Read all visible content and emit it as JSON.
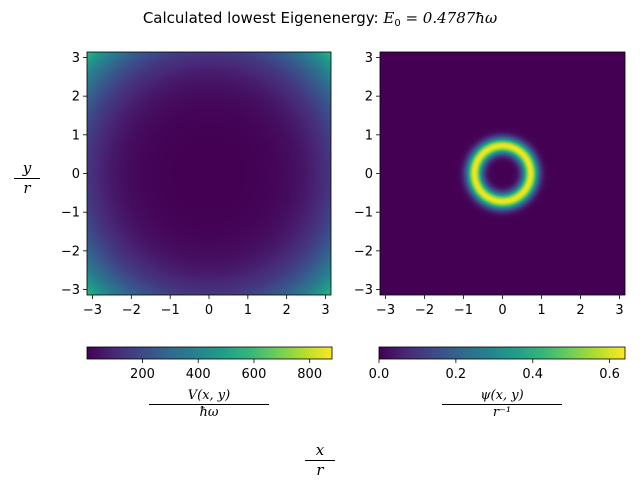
{
  "figure": {
    "title_prefix": "Calculated lowest Eigenenergy: ",
    "title_symbol": "E",
    "title_subscript": "0",
    "title_value": " = 0.4787ħω"
  },
  "labels": {
    "y_num": "y",
    "y_den": "r",
    "x_num": "x",
    "x_den": "r",
    "cb1_num": "V(x, y)",
    "cb1_den": "ħω",
    "cb2_num": "ψ(x, y)",
    "cb2_den": "r⁻¹"
  },
  "colors": {
    "viridis": [
      "#440154",
      "#482878",
      "#3e4989",
      "#31688e",
      "#26828e",
      "#1f9e89",
      "#35b779",
      "#6ece58",
      "#b5de2b",
      "#fde725"
    ]
  },
  "chart_data": [
    {
      "type": "heatmap",
      "name": "potential",
      "function": "V(x,y) = 1.5*(x^2+y^2)^2 + 1",
      "xlim": [
        -3.14159,
        3.14159
      ],
      "ylim": [
        -3.14159,
        3.14159
      ],
      "xticks": [
        -3,
        -2,
        -1,
        0,
        1,
        2,
        3
      ],
      "yticks": [
        -3,
        -2,
        -1,
        0,
        1,
        2,
        3
      ],
      "tick_labels": [
        "−3",
        "−2",
        "−1",
        "0",
        "1",
        "2",
        "3"
      ],
      "colorbar": {
        "range": [
          1,
          880
        ],
        "ticks": [
          200,
          400,
          600,
          800
        ],
        "tick_labels": [
          "200",
          "400",
          "600",
          "800"
        ]
      }
    },
    {
      "type": "heatmap",
      "name": "wavefunction",
      "function": "psi(x,y) = 0.63*exp(-((r-0.72)/0.2)^2), r = sqrt(x^2+y^2)",
      "xlim": [
        -3.14159,
        3.14159
      ],
      "ylim": [
        -3.14159,
        3.14159
      ],
      "xticks": [
        -3,
        -2,
        -1,
        0,
        1,
        2,
        3
      ],
      "yticks": [
        -3,
        -2,
        -1,
        0,
        1,
        2,
        3
      ],
      "tick_labels": [
        "−3",
        "−2",
        "−1",
        "0",
        "1",
        "2",
        "3"
      ],
      "colorbar": {
        "range": [
          0,
          0.64
        ],
        "ticks": [
          0.0,
          0.2,
          0.4,
          0.6
        ],
        "tick_labels": [
          "0.0",
          "0.2",
          "0.4",
          "0.6"
        ]
      }
    }
  ]
}
